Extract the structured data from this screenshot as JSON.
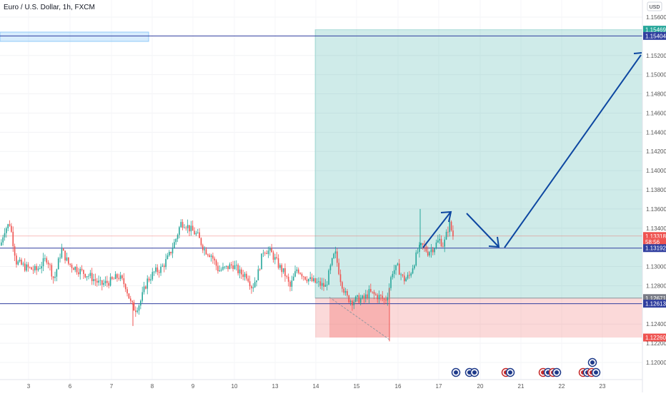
{
  "header": {
    "symbol_title": "Euro / U.S. Dollar, 1h, FXCM",
    "currency_button": "USD"
  },
  "colors": {
    "up": "#26a69a",
    "down": "#ef5350",
    "level_line": "#303f9f",
    "profit_zone": "rgba(38,166,154,0.22)",
    "loss_zone": "rgba(239,83,80,0.22)",
    "arrow": "#0d47a1",
    "current_price_tag": "#ef5350"
  },
  "chart_data": {
    "type": "candlestick",
    "ylim": [
      1.1182,
      1.1585
    ],
    "y_ticks": [
      "1.15600",
      "1.15200",
      "1.15000",
      "1.14800",
      "1.14600",
      "1.14400",
      "1.14200",
      "1.14000",
      "1.13800",
      "1.13600",
      "1.13400",
      "1.13000",
      "1.12800",
      "1.12400",
      "1.12200",
      "1.12000"
    ],
    "x_ticks": [
      "3",
      "6",
      "7",
      "8",
      "9",
      "10",
      "13",
      "14",
      "15",
      "16",
      "17",
      "20",
      "21",
      "22",
      "23"
    ],
    "price_tags": [
      {
        "label": "1.15469",
        "value": 1.15469,
        "color": "#26a69a"
      },
      {
        "label": "1.15404",
        "value": 1.15404,
        "color": "#303f9f"
      },
      {
        "label": "1.13318",
        "value": 1.13318,
        "color": "#ef5350"
      },
      {
        "label": "58:56",
        "value": 1.13258,
        "color": "#ef5350"
      },
      {
        "label": "1.13192",
        "value": 1.13192,
        "color": "#303f9f"
      },
      {
        "label": "1.12671",
        "value": 1.12671,
        "color": "#787b86"
      },
      {
        "label": "1.12613",
        "value": 1.12613,
        "color": "#303f9f"
      },
      {
        "label": "1.12260",
        "value": 1.1226,
        "color": "#ef5350"
      }
    ],
    "horizontal_levels": [
      1.15404,
      1.13192,
      1.12613
    ],
    "position": {
      "type": "long",
      "entry": 1.12671,
      "target": 1.15469,
      "stop": 1.1226
    },
    "current_price": 1.13318,
    "candle_anchors": [
      [
        0,
        1.1322
      ],
      [
        5,
        1.1338
      ],
      [
        13,
        1.1345
      ],
      [
        22,
        1.1305
      ],
      [
        35,
        1.1299
      ],
      [
        50,
        1.1296
      ],
      [
        65,
        1.1309
      ],
      [
        75,
        1.1286
      ],
      [
        85,
        1.1318
      ],
      [
        95,
        1.1303
      ],
      [
        110,
        1.1296
      ],
      [
        125,
        1.129
      ],
      [
        140,
        1.1281
      ],
      [
        155,
        1.1285
      ],
      [
        165,
        1.129
      ],
      [
        175,
        1.128
      ],
      [
        182,
        1.1262
      ],
      [
        188,
        1.1255
      ],
      [
        195,
        1.1262
      ],
      [
        205,
        1.1285
      ],
      [
        215,
        1.1294
      ],
      [
        225,
        1.1298
      ],
      [
        235,
        1.131
      ],
      [
        245,
        1.1328
      ],
      [
        252,
        1.1345
      ],
      [
        258,
        1.1345
      ],
      [
        265,
        1.1339
      ],
      [
        275,
        1.1333
      ],
      [
        285,
        1.1318
      ],
      [
        295,
        1.1312
      ],
      [
        305,
        1.1296
      ],
      [
        315,
        1.1298
      ],
      [
        325,
        1.1302
      ],
      [
        335,
        1.1293
      ],
      [
        345,
        1.1291
      ],
      [
        352,
        1.1278
      ],
      [
        360,
        1.1292
      ],
      [
        368,
        1.1318
      ],
      [
        378,
        1.1315
      ],
      [
        390,
        1.13
      ],
      [
        398,
        1.1292
      ],
      [
        405,
        1.1278
      ],
      [
        415,
        1.1298
      ],
      [
        425,
        1.129
      ],
      [
        435,
        1.1285
      ],
      [
        445,
        1.1282
      ],
      [
        455,
        1.1279
      ],
      [
        462,
        1.13
      ],
      [
        468,
        1.1315
      ],
      [
        476,
        1.1286
      ],
      [
        484,
        1.1268
      ],
      [
        492,
        1.1264
      ],
      [
        500,
        1.1266
      ],
      [
        508,
        1.1266
      ],
      [
        516,
        1.1273
      ],
      [
        524,
        1.127
      ],
      [
        532,
        1.1268
      ],
      [
        538,
        1.1264
      ],
      [
        543,
        1.1275
      ],
      [
        548,
        1.1295
      ],
      [
        556,
        1.1299
      ],
      [
        564,
        1.1286
      ],
      [
        572,
        1.129
      ],
      [
        578,
        1.1303
      ],
      [
        584,
        1.1316
      ],
      [
        590,
        1.1322
      ],
      [
        598,
        1.1315
      ],
      [
        606,
        1.132
      ],
      [
        614,
        1.1328
      ],
      [
        620,
        1.1322
      ],
      [
        628,
        1.1345
      ],
      [
        634,
        1.133
      ]
    ]
  }
}
